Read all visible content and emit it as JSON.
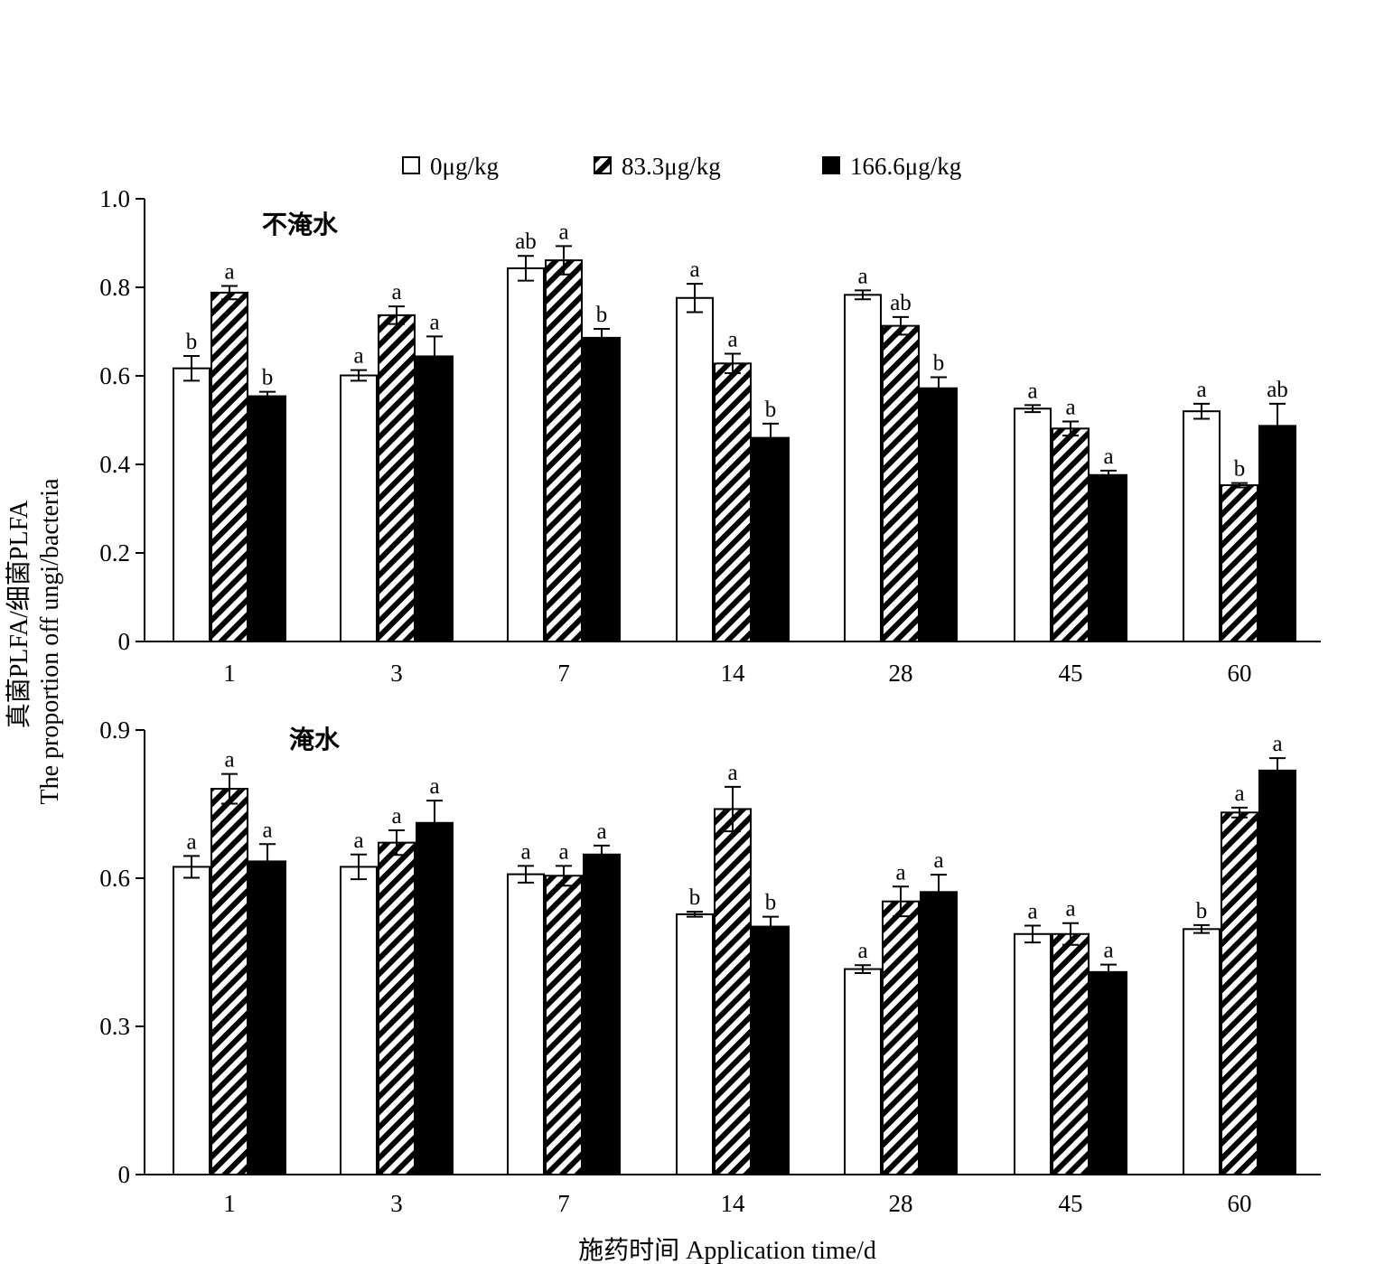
{
  "legend": [
    {
      "label": "0μg/kg",
      "style": "white"
    },
    {
      "label": "83.3μg/kg",
      "style": "hatch"
    },
    {
      "label": "166.6μg/kg",
      "style": "black"
    }
  ],
  "y_axis_title": [
    "真菌PLFA/细菌PLFA",
    "The proportion off ungi/bacteria"
  ],
  "x_axis_title": "施药时间 Application time/d",
  "chart_data": [
    {
      "type": "bar",
      "panel_label": "不淹水",
      "categories": [
        "1",
        "3",
        "7",
        "14",
        "28",
        "45",
        "60"
      ],
      "ylim": [
        0,
        1.0
      ],
      "yticks": [
        0,
        0.2,
        0.4,
        0.6,
        0.8,
        1.0
      ],
      "ytick_labels": [
        "0",
        "0.2",
        "0.4",
        "0.6",
        "0.8",
        "1.0"
      ],
      "series": [
        {
          "name": "0μg/kg",
          "values": [
            0.617,
            0.601,
            0.843,
            0.776,
            0.783,
            0.526,
            0.52
          ],
          "errors": [
            0.028,
            0.012,
            0.028,
            0.032,
            0.01,
            0.008,
            0.017
          ],
          "letters": [
            "b",
            "a",
            "ab",
            "a",
            "a",
            "a",
            "a"
          ]
        },
        {
          "name": "83.3μg/kg",
          "values": [
            0.788,
            0.737,
            0.861,
            0.628,
            0.713,
            0.481,
            0.353
          ],
          "errors": [
            0.015,
            0.02,
            0.032,
            0.022,
            0.02,
            0.016,
            0.005
          ],
          "letters": [
            "a",
            "a",
            "a",
            "a",
            "ab",
            "a",
            "b"
          ]
        },
        {
          "name": "166.6μg/kg",
          "values": [
            0.554,
            0.644,
            0.686,
            0.46,
            0.572,
            0.376,
            0.487
          ],
          "errors": [
            0.01,
            0.045,
            0.02,
            0.032,
            0.025,
            0.01,
            0.05
          ],
          "letters": [
            "b",
            "a",
            "b",
            "b",
            "b",
            "a",
            "ab"
          ]
        }
      ]
    },
    {
      "type": "bar",
      "panel_label": "淹水",
      "categories": [
        "1",
        "3",
        "7",
        "14",
        "28",
        "45",
        "60"
      ],
      "ylim": [
        0,
        0.9
      ],
      "yticks": [
        0,
        0.3,
        0.6,
        0.9
      ],
      "ytick_labels": [
        "0",
        "0.3",
        "0.6",
        "0.9"
      ],
      "series": [
        {
          "name": "0μg/kg",
          "values": [
            0.623,
            0.623,
            0.608,
            0.527,
            0.416,
            0.487,
            0.497
          ],
          "errors": [
            0.022,
            0.025,
            0.017,
            0.005,
            0.008,
            0.017,
            0.008
          ],
          "letters": [
            "a",
            "a",
            "a",
            "b",
            "a",
            "a",
            "b"
          ]
        },
        {
          "name": "83.3μg/kg",
          "values": [
            0.781,
            0.672,
            0.605,
            0.74,
            0.553,
            0.487,
            0.733
          ],
          "errors": [
            0.03,
            0.025,
            0.02,
            0.045,
            0.03,
            0.022,
            0.01
          ],
          "letters": [
            "a",
            "a",
            "a",
            "a",
            "a",
            "a",
            "a"
          ]
        },
        {
          "name": "166.6μg/kg",
          "values": [
            0.634,
            0.712,
            0.648,
            0.502,
            0.572,
            0.41,
            0.818
          ],
          "errors": [
            0.035,
            0.045,
            0.018,
            0.02,
            0.035,
            0.015,
            0.025
          ],
          "letters": [
            "a",
            "a",
            "a",
            "b",
            "a",
            "a",
            "a"
          ]
        }
      ]
    }
  ]
}
